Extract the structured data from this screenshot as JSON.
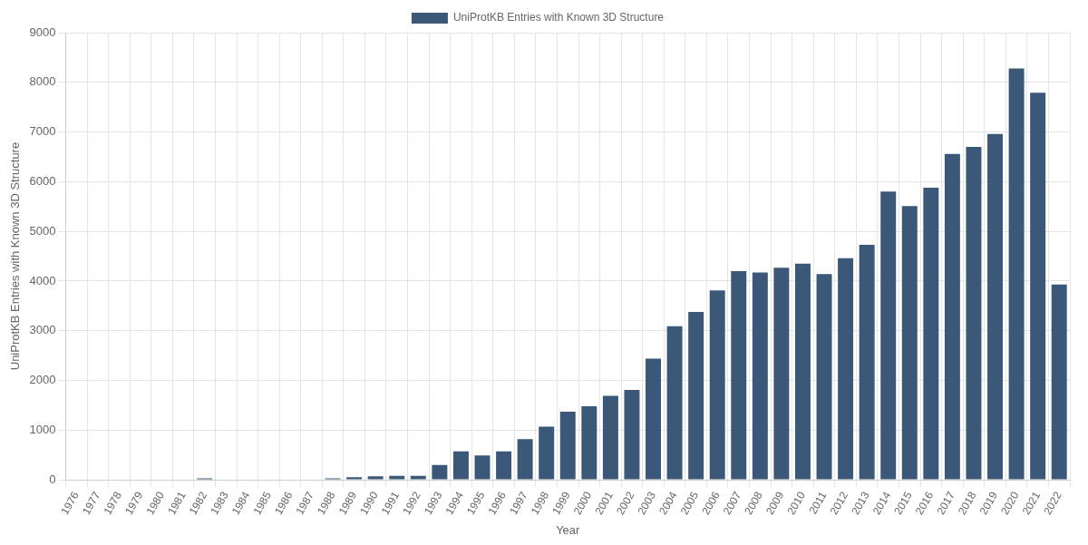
{
  "chart_data": {
    "type": "bar",
    "x_label": "Year",
    "y_label": "UniProtKB Entries with Known 3D Structure",
    "categories": [
      "1976",
      "1977",
      "1978",
      "1979",
      "1980",
      "1981",
      "1982",
      "1983",
      "1984",
      "1985",
      "1986",
      "1987",
      "1988",
      "1989",
      "1990",
      "1991",
      "1992",
      "1993",
      "1994",
      "1995",
      "1996",
      "1997",
      "1998",
      "1999",
      "2000",
      "2001",
      "2002",
      "2003",
      "2004",
      "2005",
      "2006",
      "2007",
      "2008",
      "2009",
      "2010",
      "2011",
      "2012",
      "2013",
      "2014",
      "2015",
      "2016",
      "2017",
      "2018",
      "2019",
      "2020",
      "2021",
      "2022"
    ],
    "series": [
      {
        "name": "UniProtKB Entries with Known 3D Structure",
        "color": "#3b5878",
        "values": [
          10,
          10,
          10,
          10,
          10,
          10,
          30,
          10,
          10,
          10,
          10,
          10,
          30,
          50,
          70,
          80,
          80,
          300,
          570,
          490,
          570,
          820,
          1070,
          1370,
          1480,
          1690,
          1810,
          2440,
          3090,
          3380,
          3810,
          4200,
          4170,
          4270,
          4350,
          4140,
          4460,
          4730,
          5800,
          5510,
          5880,
          6560,
          6700,
          6960,
          8280,
          7790,
          3930
        ]
      }
    ],
    "ylim": [
      0,
      9000
    ],
    "yticks": [
      0,
      1000,
      2000,
      3000,
      4000,
      5000,
      6000,
      7000,
      8000,
      9000
    ],
    "grid": true,
    "legend": "top"
  }
}
